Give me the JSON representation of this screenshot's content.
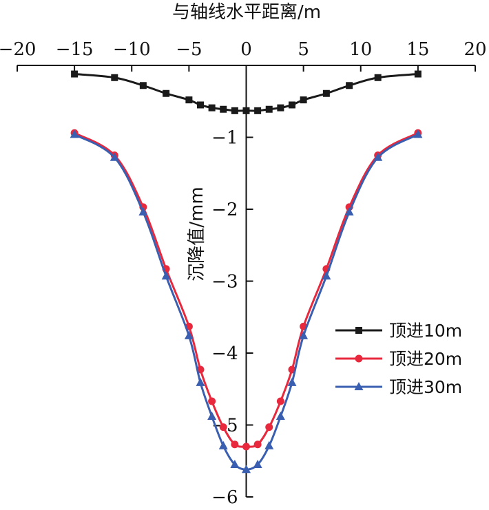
{
  "chart_data": {
    "type": "line",
    "xlabel": "与轴线水平距离/m",
    "ylabel": "沉降值/mm",
    "xlim": [
      -20,
      20
    ],
    "ylim": [
      -6,
      0
    ],
    "x_ticks": [
      -20,
      -15,
      -10,
      -5,
      0,
      5,
      10,
      15,
      20
    ],
    "x_tick_labels": [
      "−20",
      "−15",
      "−10",
      "−5",
      "0",
      "5",
      "10",
      "15",
      "20"
    ],
    "y_ticks": [
      -1,
      -2,
      -3,
      -4,
      -5,
      -6
    ],
    "y_tick_labels": [
      "−1",
      "−2",
      "−3",
      "−4",
      "−5",
      "−6"
    ],
    "x_axis_position": "top",
    "y_axis_at_x": 0,
    "grid": false,
    "legend_position": "right",
    "series": [
      {
        "name": "顶进10m",
        "color": "#1a1a1a",
        "marker": "square",
        "x": [
          -15,
          -11.5,
          -9,
          -7,
          -5,
          -4,
          -3,
          -2,
          -1,
          0,
          1,
          2,
          3,
          4,
          5,
          7,
          9,
          11.5,
          15
        ],
        "y": [
          -0.12,
          -0.17,
          -0.28,
          -0.39,
          -0.48,
          -0.55,
          -0.59,
          -0.61,
          -0.63,
          -0.63,
          -0.63,
          -0.61,
          -0.59,
          -0.55,
          -0.48,
          -0.39,
          -0.28,
          -0.17,
          -0.12
        ]
      },
      {
        "name": "顶进20m",
        "color": "#e8283c",
        "marker": "circle",
        "x": [
          -15,
          -11.5,
          -9,
          -7,
          -5,
          -4,
          -3,
          -2,
          -1,
          0,
          1,
          2,
          3,
          4,
          5,
          7,
          9,
          11.5,
          15
        ],
        "y": [
          -0.94,
          -1.25,
          -1.97,
          -2.83,
          -3.63,
          -4.23,
          -4.67,
          -5.03,
          -5.27,
          -5.3,
          -5.27,
          -5.03,
          -4.67,
          -4.23,
          -3.63,
          -2.83,
          -1.97,
          -1.25,
          -0.94
        ]
      },
      {
        "name": "顶进30m",
        "color": "#3a5fb0",
        "marker": "triangle",
        "x": [
          -15,
          -11.5,
          -9,
          -7,
          -5,
          -4,
          -3,
          -2,
          -1,
          0,
          1,
          2,
          3,
          4,
          5,
          7,
          9,
          11.5,
          15
        ],
        "y": [
          -0.96,
          -1.28,
          -2.04,
          -2.93,
          -3.76,
          -4.41,
          -4.88,
          -5.29,
          -5.55,
          -5.62,
          -5.55,
          -5.29,
          -4.88,
          -4.41,
          -3.76,
          -2.93,
          -2.04,
          -1.28,
          -0.96
        ]
      }
    ]
  }
}
